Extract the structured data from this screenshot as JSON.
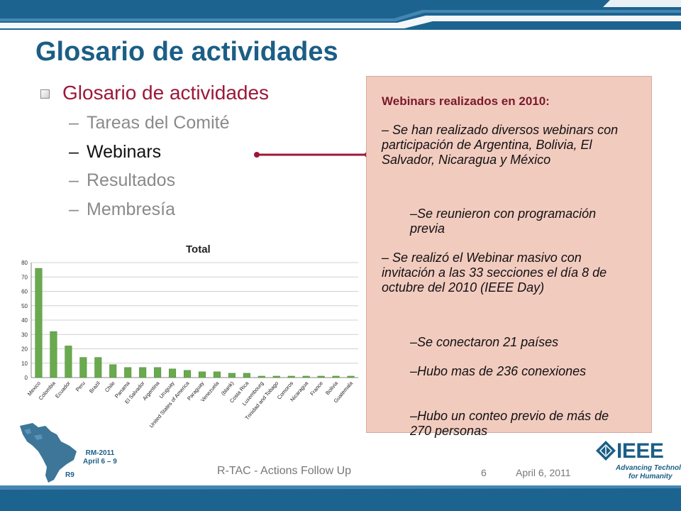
{
  "slide": {
    "title": "Glosario de actividades",
    "bullet": "Glosario de actividades",
    "subitems": [
      {
        "label": "Tareas del Comité",
        "active": false
      },
      {
        "label": "Webinars",
        "active": true
      },
      {
        "label": "Resultados",
        "active": false
      },
      {
        "label": "Membresía",
        "active": false
      }
    ],
    "dash": "–"
  },
  "callout": {
    "title": "Webinars realizados en 2010:",
    "p1": "– Se han realizado diversos webinars con participación de Argentina, Bolivia, El Salvador, Nicaragua y México",
    "p1a": "–Se reunieron con programación previa",
    "p2": "– Se realizó el Webinar masivo con invitación a las 33 secciones el día 8 de octubre del 2010 (IEEE Day)",
    "p2a": "–Se conectaron 21 países",
    "p2b": "–Hubo mas de 236 conexiones",
    "p2c": "–Hubo un conteo previo de más de 270 personas"
  },
  "chart_data": {
    "type": "bar",
    "title": "Total",
    "categories": [
      "Mexico",
      "Colombia",
      "Ecuador",
      "Peru",
      "Brazil",
      "Chile",
      "Panama",
      "El Salvador",
      "Argentina",
      "Uruguay",
      "United States of America",
      "Paraguay",
      "Venezuela",
      "(blank)",
      "Costa Rica",
      "Luxembourg",
      "Trinidad and Tobago",
      "Comoros",
      "Nicaragua",
      "France",
      "Bolivia",
      "Guatemala"
    ],
    "values": [
      76,
      32,
      22,
      14,
      14,
      9,
      7,
      7,
      7,
      6,
      5,
      4,
      4,
      3,
      3,
      1,
      1,
      1,
      1,
      1,
      1,
      1
    ],
    "ylim": [
      0,
      80
    ],
    "yticks": [
      0,
      10,
      20,
      30,
      40,
      50,
      60,
      70,
      80
    ],
    "grid": true,
    "bar_color": "#6aaa4e"
  },
  "branding": {
    "rm_line1": "RM-2011",
    "rm_line2": "April 6 – 9",
    "region": "R9",
    "ieee": "IEEE",
    "tagline1": "Advancing Technology",
    "tagline2": "for Humanity"
  },
  "footer": {
    "text": "R-TAC - Actions Follow Up",
    "page": "6",
    "date": "April 6, 2011"
  },
  "colors": {
    "accent_blue": "#1b5e86",
    "accent_red": "#9c1838",
    "callout_bg": "#f2cbbf"
  }
}
